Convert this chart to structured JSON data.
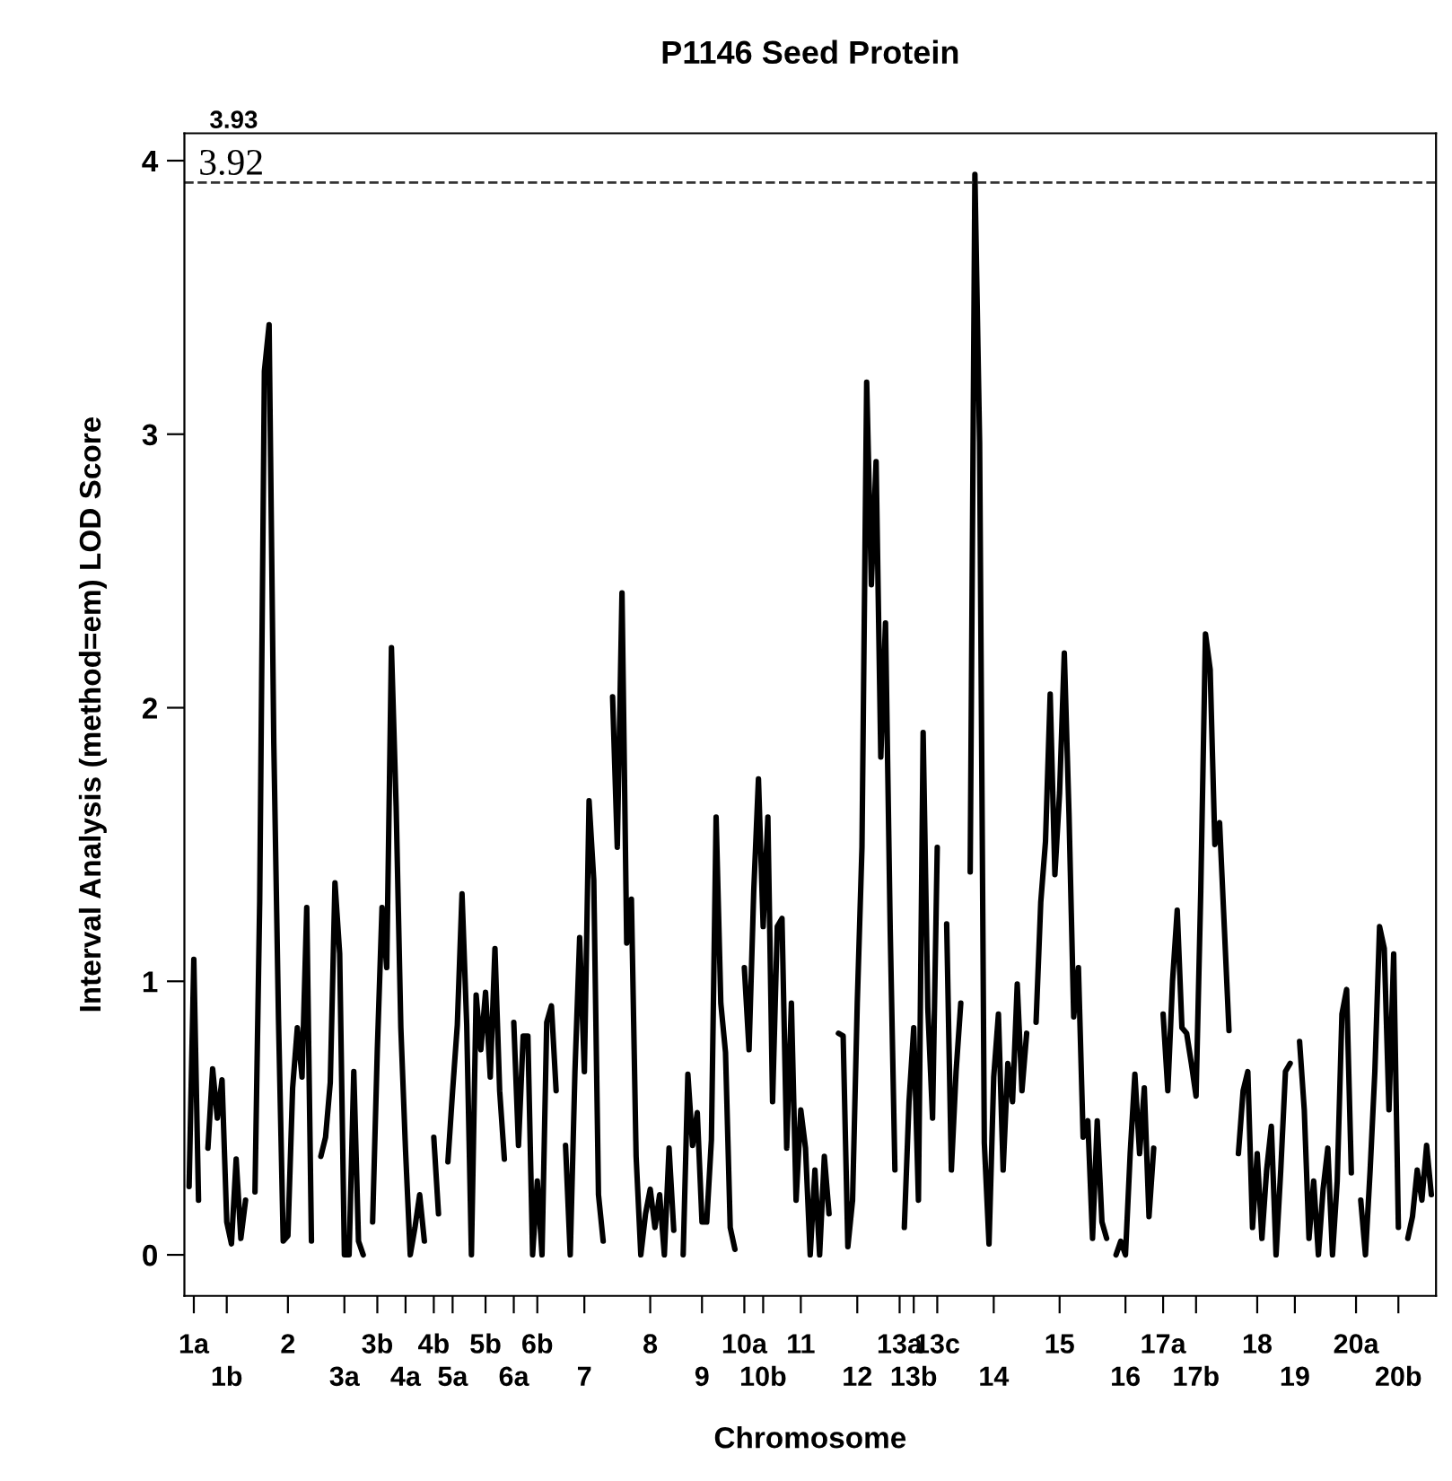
{
  "chart_data": {
    "type": "line",
    "title": "P1146 Seed Protein",
    "xlabel": "Chromosome",
    "ylabel": "Interval Analysis (method=em) LOD Score",
    "ylim": [
      -0.15,
      4.1
    ],
    "yticks": [
      0,
      1,
      2,
      3,
      4
    ],
    "categories": [
      null,
      "1a",
      null,
      null,
      null,
      null,
      null,
      null,
      "1b",
      null,
      null,
      null,
      null,
      null,
      null,
      null,
      null,
      null,
      null,
      null,
      null,
      "2",
      null,
      null,
      null,
      null,
      null,
      null,
      null,
      null,
      null,
      null,
      null,
      "3a",
      null,
      null,
      null,
      null,
      null,
      null,
      "3b",
      null,
      null,
      null,
      null,
      null,
      "4a",
      null,
      null,
      null,
      null,
      null,
      "4b",
      null,
      null,
      null,
      "5a",
      null,
      null,
      null,
      null,
      null,
      null,
      "5b",
      null,
      null,
      null,
      null,
      null,
      "6a",
      null,
      null,
      null,
      null,
      "6b",
      null,
      null,
      null,
      null,
      null,
      null,
      null,
      null,
      null,
      "7",
      null,
      null,
      null,
      null,
      null,
      null,
      null,
      null,
      null,
      null,
      null,
      null,
      null,
      "8",
      null,
      null,
      null,
      null,
      null,
      null,
      null,
      null,
      null,
      null,
      "9",
      null,
      null,
      null,
      null,
      null,
      null,
      null,
      null,
      "10a",
      null,
      null,
      null,
      "10b",
      null,
      null,
      null,
      null,
      null,
      null,
      null,
      "11",
      null,
      null,
      null,
      null,
      null,
      null,
      null,
      null,
      null,
      null,
      null,
      "12",
      null,
      null,
      null,
      null,
      null,
      null,
      null,
      null,
      "13a",
      null,
      null,
      "13b",
      null,
      null,
      null,
      null,
      "13c",
      null,
      null,
      null,
      null,
      null,
      null,
      null,
      null,
      null,
      null,
      null,
      "14",
      null,
      null,
      null,
      null,
      null,
      null,
      null,
      null,
      null,
      null,
      null,
      null,
      null,
      "15",
      null,
      null,
      null,
      null,
      null,
      null,
      null,
      null,
      null,
      null,
      null,
      null,
      null,
      "16",
      null,
      null,
      null,
      null,
      null,
      null,
      null,
      "17a",
      null,
      null,
      null,
      null,
      null,
      null,
      "17b",
      null,
      null,
      null,
      null,
      null,
      null,
      null,
      null,
      null,
      null,
      null,
      null,
      "18",
      null,
      null,
      null,
      null,
      null,
      null,
      null,
      "19",
      null,
      null,
      null,
      null,
      null,
      null,
      null,
      null,
      null,
      null,
      null,
      null,
      "20a",
      null,
      null,
      null,
      null,
      null,
      null,
      null,
      null,
      "20b",
      null,
      null,
      null,
      null,
      null,
      null,
      null
    ],
    "ref_lines": [
      {
        "axis": "y",
        "value": 3.92,
        "label": "3.92",
        "color": "#333333",
        "line_style": "dashed"
      }
    ],
    "annotations": [
      "3.93"
    ],
    "grid": false,
    "legend": false,
    "marker": "none",
    "line_style": "solid",
    "series": [
      {
        "color": "#000000",
        "values": [
          0.25,
          1.08,
          0.2,
          null,
          0.39,
          0.68,
          0.5,
          0.64,
          0.12,
          0.04,
          0.35,
          0.06,
          0.2,
          null,
          0.23,
          1.29,
          3.23,
          3.4,
          1.87,
          0.86,
          0.05,
          0.07,
          0.61,
          0.83,
          0.65,
          1.27,
          0.05,
          null,
          0.36,
          0.43,
          0.63,
          1.36,
          1.1,
          0.0,
          0.0,
          0.67,
          0.05,
          0.0,
          null,
          0.12,
          0.75,
          1.27,
          1.05,
          2.22,
          1.64,
          0.83,
          0.38,
          0.0,
          0.1,
          0.22,
          0.05,
          null,
          0.43,
          0.15,
          null,
          0.34,
          0.6,
          0.84,
          1.32,
          0.84,
          0.0,
          0.95,
          0.75,
          0.96,
          0.65,
          1.12,
          0.6,
          0.35,
          null,
          0.85,
          0.4,
          0.8,
          0.8,
          0.0,
          0.27,
          0.0,
          0.85,
          0.91,
          0.6,
          null,
          0.4,
          0.0,
          0.67,
          1.16,
          0.67,
          1.66,
          1.37,
          0.22,
          0.05,
          null,
          2.04,
          1.49,
          2.42,
          1.14,
          1.3,
          0.36,
          0.0,
          0.15,
          0.24,
          0.1,
          0.22,
          0.0,
          0.39,
          0.09,
          null,
          0.0,
          0.66,
          0.4,
          0.52,
          0.12,
          0.12,
          0.42,
          1.6,
          0.92,
          0.74,
          0.1,
          0.02,
          null,
          1.05,
          0.75,
          1.33,
          1.74,
          1.2,
          1.6,
          0.56,
          1.2,
          1.23,
          0.39,
          0.92,
          0.2,
          0.53,
          0.39,
          0.0,
          0.31,
          0.0,
          0.36,
          0.15,
          null,
          0.81,
          0.8,
          0.03,
          0.2,
          0.92,
          1.49,
          3.19,
          2.45,
          2.9,
          1.82,
          2.31,
          1.19,
          0.31,
          null,
          0.1,
          0.56,
          0.83,
          0.2,
          1.91,
          0.9,
          0.5,
          1.49,
          null,
          1.21,
          0.31,
          0.67,
          0.92,
          null,
          1.4,
          3.95,
          2.97,
          0.41,
          0.04,
          0.65,
          0.88,
          0.31,
          0.7,
          0.56,
          0.99,
          0.6,
          0.81,
          null,
          0.85,
          1.29,
          1.51,
          2.05,
          1.39,
          1.69,
          2.2,
          1.61,
          0.87,
          1.05,
          0.43,
          0.49,
          0.06,
          0.49,
          0.12,
          0.06,
          null,
          0.0,
          0.05,
          0.0,
          0.37,
          0.66,
          0.37,
          0.61,
          0.14,
          0.39,
          null,
          0.88,
          0.6,
          1.0,
          1.26,
          0.83,
          0.81,
          0.7,
          0.58,
          1.33,
          2.27,
          2.14,
          1.5,
          1.58,
          1.2,
          0.82,
          null,
          0.37,
          0.6,
          0.67,
          0.1,
          0.37,
          0.06,
          0.31,
          0.47,
          0.0,
          0.31,
          0.67,
          0.7,
          null,
          0.78,
          0.53,
          0.06,
          0.27,
          0.0,
          0.24,
          0.39,
          0.0,
          0.27,
          0.88,
          0.97,
          0.3,
          null,
          0.2,
          0.0,
          0.31,
          0.67,
          1.2,
          1.12,
          0.53,
          1.1,
          0.1,
          null,
          0.06,
          0.14,
          0.31,
          0.2,
          0.4,
          0.22
        ]
      }
    ]
  }
}
